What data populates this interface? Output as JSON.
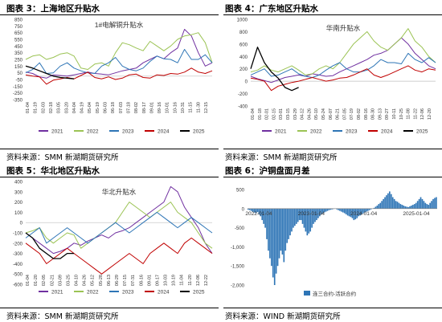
{
  "colors": {
    "2021": "#7030a0",
    "2022": "#9bc354",
    "2023": "#2e75b6",
    "2024": "#c00000",
    "2025": "#000000",
    "bar": "#2e75b6"
  },
  "panels": {
    "p3": {
      "title": "图表 3：上海地区升贴水",
      "source": "资料来源：SMM  新湖期货研究所"
    },
    "p4": {
      "title": "图表 4：广东地区升贴水",
      "source": "资料来源：SMM  新湖期货研究所"
    },
    "p5": {
      "title": "图表 5：华北地区升贴水",
      "source": "资料来源：SMM  新湖期货研究所"
    },
    "p6": {
      "title": "图表 6：沪铜盘面月差",
      "source": "资料来源：WIND  新湖期货研究所"
    }
  },
  "chart_data": [
    {
      "id": "p3",
      "type": "line",
      "title": "1#电解铜升贴水",
      "ylim": [
        -350,
        850
      ],
      "yticks": [
        -350,
        -250,
        -150,
        -50,
        50,
        150,
        250,
        350,
        450,
        550,
        650,
        750,
        850
      ],
      "ytick_labels": [
        "-350",
        "-250",
        "-150",
        "-50",
        "50",
        "150",
        "250",
        "350",
        "450",
        "550",
        "650",
        "750",
        "850"
      ],
      "xticks": [
        "01-04",
        "01-19",
        "02-03",
        "02-18",
        "03-05",
        "03-20",
        "04-04",
        "04-19",
        "05-04",
        "05-19",
        "06-03",
        "06-18",
        "07-03",
        "07-18",
        "08-02",
        "08-17",
        "09-01",
        "09-16",
        "10-01",
        "10-16",
        "10-31",
        "11-15",
        "11-30",
        "12-15"
      ],
      "series": [
        {
          "name": "2021",
          "values": [
            60,
            40,
            -10,
            -30,
            20,
            10,
            0,
            20,
            40,
            60,
            40,
            30,
            20,
            50,
            80,
            100,
            120,
            200,
            250,
            300,
            260,
            350,
            420,
            700,
            600,
            350,
            150,
            200
          ]
        },
        {
          "name": "2022",
          "values": [
            250,
            300,
            320,
            250,
            280,
            330,
            350,
            300,
            120,
            100,
            180,
            200,
            150,
            350,
            500,
            470,
            420,
            380,
            520,
            450,
            380,
            450,
            550,
            600,
            620,
            650,
            500,
            200
          ]
        },
        {
          "name": "2023",
          "values": [
            50,
            100,
            200,
            40,
            50,
            150,
            200,
            120,
            80,
            50,
            40,
            150,
            200,
            280,
            150,
            100,
            80,
            120,
            220,
            300,
            260,
            250,
            200,
            400,
            250,
            250,
            320,
            200
          ]
        },
        {
          "name": "2024",
          "values": [
            20,
            0,
            -10,
            -120,
            -60,
            -40,
            -20,
            -40,
            10,
            60,
            -20,
            -40,
            -10,
            -50,
            -30,
            20,
            30,
            -20,
            -30,
            20,
            10,
            40,
            30,
            60,
            120,
            60,
            40,
            80
          ]
        },
        {
          "name": "2025",
          "values": [
            150,
            120,
            80,
            40,
            0,
            -20,
            -30,
            -40
          ]
        }
      ]
    },
    {
      "id": "p4",
      "type": "line",
      "title": "华南升贴水",
      "ylim": [
        -400,
        1000
      ],
      "yticks": [
        -400,
        -200,
        0,
        200,
        400,
        600,
        800,
        1000
      ],
      "ytick_labels": [
        "-400",
        "-200",
        "0",
        "200",
        "400",
        "600",
        "800",
        "1000"
      ],
      "xticks": [
        "01-04",
        "01-18",
        "02-01",
        "02-15",
        "03-01",
        "03-15",
        "03-29",
        "04-12",
        "04-26",
        "05-10",
        "05-24",
        "06-07",
        "06-21",
        "07-05",
        "07-19",
        "08-02",
        "08-16",
        "08-30",
        "09-13",
        "09-27",
        "10-11",
        "10-25",
        "11-08",
        "11-22",
        "12-06",
        "12-20"
      ],
      "series": [
        {
          "name": "2021",
          "values": [
            80,
            40,
            10,
            -20,
            20,
            60,
            80,
            100,
            80,
            120,
            100,
            80,
            90,
            150,
            200,
            250,
            300,
            350,
            420,
            450,
            500,
            600,
            700,
            600,
            450,
            350,
            250,
            200
          ]
        },
        {
          "name": "2022",
          "values": [
            150,
            180,
            250,
            180,
            150,
            200,
            250,
            180,
            100,
            120,
            200,
            250,
            200,
            300,
            450,
            600,
            700,
            800,
            650,
            550,
            500,
            600,
            700,
            850,
            650,
            550,
            400,
            300
          ]
        },
        {
          "name": "2023",
          "values": [
            100,
            150,
            200,
            80,
            100,
            150,
            200,
            120,
            80,
            60,
            100,
            180,
            250,
            300,
            200,
            150,
            150,
            180,
            250,
            350,
            300,
            300,
            280,
            450,
            350,
            300,
            380,
            300
          ]
        },
        {
          "name": "2024",
          "values": [
            50,
            30,
            0,
            -150,
            -80,
            -50,
            -20,
            0,
            30,
            60,
            30,
            0,
            20,
            50,
            60,
            100,
            150,
            200,
            100,
            60,
            100,
            150,
            200,
            250,
            180,
            150,
            200,
            180
          ]
        },
        {
          "name": "2025",
          "values": [
            200,
            550,
            300,
            150,
            50,
            -100,
            -150,
            -100
          ]
        }
      ]
    },
    {
      "id": "p5",
      "type": "line",
      "title": "华北升贴水",
      "ylim": [
        -600,
        400
      ],
      "yticks": [
        -600,
        -500,
        -400,
        -300,
        -200,
        -100,
        0,
        100,
        200,
        300,
        400
      ],
      "ytick_labels": [
        "-600",
        "-500",
        "-400",
        "-300",
        "-200",
        "-100",
        "0",
        "100",
        "200",
        "300",
        "400"
      ],
      "xticks": [
        "01-04",
        "01-20",
        "02-05",
        "02-21",
        "03-09",
        "03-25",
        "04-10",
        "04-26",
        "05-12",
        "05-28",
        "06-13",
        "06-29",
        "07-15",
        "07-31",
        "08-16",
        "09-01",
        "09-17",
        "10-03",
        "10-19",
        "11-04",
        "11-20",
        "12-06",
        "12-22"
      ],
      "series": [
        {
          "name": "2021",
          "values": [
            -100,
            -150,
            -200,
            -250,
            -300,
            -280,
            -250,
            -200,
            -220,
            -180,
            -150,
            -120,
            -150,
            -100,
            -80,
            -50,
            0,
            50,
            100,
            150,
            200,
            350,
            300,
            150,
            50,
            -50,
            -200,
            -300
          ]
        },
        {
          "name": "2022",
          "values": [
            -100,
            -80,
            -50,
            -150,
            -200,
            -150,
            -100,
            -120,
            -250,
            -200,
            -150,
            -100,
            -50,
            0,
            100,
            200,
            150,
            100,
            50,
            100,
            150,
            200,
            100,
            50,
            0,
            -100,
            -200,
            -250
          ]
        },
        {
          "name": "2023",
          "values": [
            -150,
            -100,
            -50,
            -200,
            -150,
            -100,
            -50,
            -100,
            -150,
            -200,
            -150,
            -100,
            -50,
            0,
            -50,
            -100,
            -50,
            0,
            50,
            100,
            50,
            0,
            -50,
            0,
            50,
            0,
            -50,
            -100
          ]
        },
        {
          "name": "2024",
          "values": [
            -200,
            -250,
            -300,
            -400,
            -350,
            -300,
            -250,
            -300,
            -350,
            -400,
            -450,
            -500,
            -450,
            -400,
            -350,
            -300,
            -350,
            -400,
            -300,
            -250,
            -200,
            -250,
            -300,
            -200,
            -150,
            -200,
            -250,
            -300
          ]
        },
        {
          "name": "2025",
          "values": [
            -100,
            -150,
            -250,
            -300,
            -350,
            -350,
            -300,
            -300
          ]
        }
      ]
    },
    {
      "id": "p6",
      "type": "bar",
      "ylim": [
        -2000,
        500
      ],
      "yticks": [
        -2000,
        -1500,
        -1000,
        -500,
        0,
        500
      ],
      "ytick_labels": [
        "-2,000",
        "-1,500",
        "-1,000",
        "-500",
        "0",
        "500"
      ],
      "xticks": [
        "2022-01-04",
        "2023-01-04",
        "2024-01-04",
        "2025-01-04"
      ],
      "legend": "连三合约-活跃合约",
      "values": [
        -30,
        -40,
        -60,
        -80,
        -100,
        -120,
        -90,
        -150,
        -200,
        -300,
        -400,
        -500,
        -800,
        -1100,
        -1300,
        -1500,
        -1800,
        -2000,
        -1700,
        -1500,
        -1300,
        -1100,
        -1200,
        -1400,
        -1100,
        -900,
        -800,
        -700,
        -600,
        -500,
        -450,
        -400,
        -350,
        -300,
        -300,
        -400,
        -500,
        -600,
        -700,
        -650,
        -600,
        -500,
        -400,
        -350,
        -300,
        -250,
        -200,
        -150,
        -120,
        -100,
        -80,
        -60,
        -40,
        -30,
        -20,
        -10,
        0,
        -20,
        -40,
        -60,
        -80,
        -100,
        -120,
        -150,
        -180,
        -200,
        -220,
        -250,
        -300,
        -280,
        -250,
        -200,
        -180,
        -150,
        -120,
        -100,
        -80,
        -60,
        -40,
        -20,
        0,
        20,
        50,
        80,
        120,
        150,
        200,
        250,
        300,
        350,
        400,
        450,
        380,
        300,
        250,
        200,
        180,
        150,
        120,
        100,
        80,
        60,
        50,
        40,
        60,
        80,
        100,
        120,
        150,
        200,
        250,
        300,
        250,
        200,
        150,
        120,
        100,
        150,
        200,
        250,
        280,
        300
      ]
    }
  ],
  "legend_years": [
    "2021",
    "2022",
    "2023",
    "2024",
    "2025"
  ]
}
